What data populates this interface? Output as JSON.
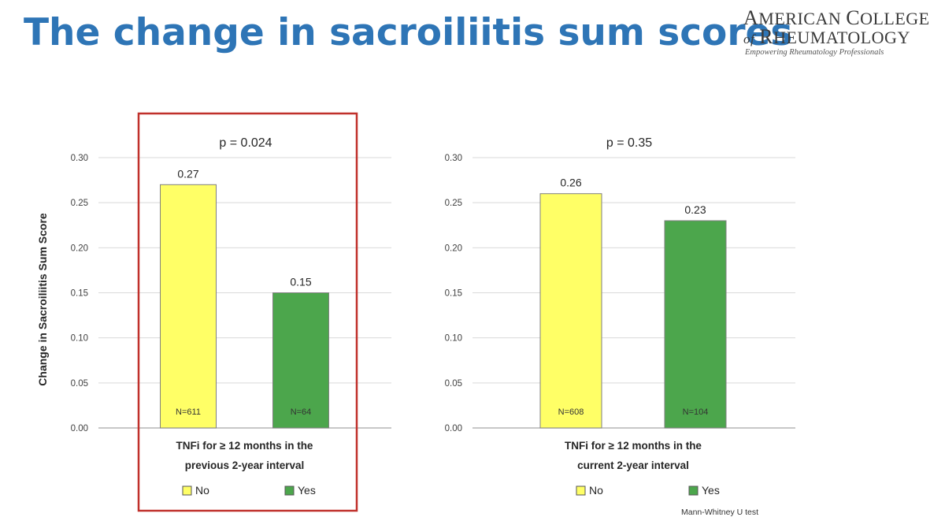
{
  "slide": {
    "title": "The change in sacroiliitis sum scores"
  },
  "logo": {
    "line1": "American College",
    "line2": "of Rheumatology",
    "tagline": "Empowering Rheumatology Professionals"
  },
  "chart_data": [
    {
      "type": "bar",
      "title": "p = 0.024",
      "ylabel": "Change in Sacroiliitis Sum Score",
      "xlabel_lines": [
        "TNFi for ≥ 12 months in the",
        "previous 2-year interval"
      ],
      "ylim": [
        0,
        0.3
      ],
      "yticks": [
        "0.00",
        "0.05",
        "0.10",
        "0.15",
        "0.20",
        "0.25",
        "0.30"
      ],
      "grid": true,
      "highlighted": true,
      "legend_placement": "bottom",
      "categories": [
        "No",
        "Yes"
      ],
      "values": [
        0.27,
        0.15
      ],
      "value_labels": [
        "0.27",
        "0.15"
      ],
      "n_labels": [
        "N=611",
        "N=64"
      ],
      "colors": [
        "#ffff66",
        "#4ca64c"
      ],
      "legend": [
        {
          "label": "No",
          "color": "#ffff66"
        },
        {
          "label": "Yes",
          "color": "#4ca64c"
        }
      ]
    },
    {
      "type": "bar",
      "title": "p = 0.35",
      "ylabel": "",
      "xlabel_lines": [
        "TNFi for ≥ 12 months in the",
        "current 2-year interval"
      ],
      "ylim": [
        0,
        0.3
      ],
      "yticks": [
        "0.00",
        "0.05",
        "0.10",
        "0.15",
        "0.20",
        "0.25",
        "0.30"
      ],
      "grid": true,
      "highlighted": false,
      "legend_placement": "bottom",
      "categories": [
        "No",
        "Yes"
      ],
      "values": [
        0.26,
        0.23
      ],
      "value_labels": [
        "0.26",
        "0.23"
      ],
      "n_labels": [
        "N=608",
        "N=104"
      ],
      "colors": [
        "#ffff66",
        "#4ca64c"
      ],
      "legend": [
        {
          "label": "No",
          "color": "#ffff66"
        },
        {
          "label": "Yes",
          "color": "#4ca64c"
        }
      ],
      "footnote": "Mann-Whitney U test"
    }
  ]
}
